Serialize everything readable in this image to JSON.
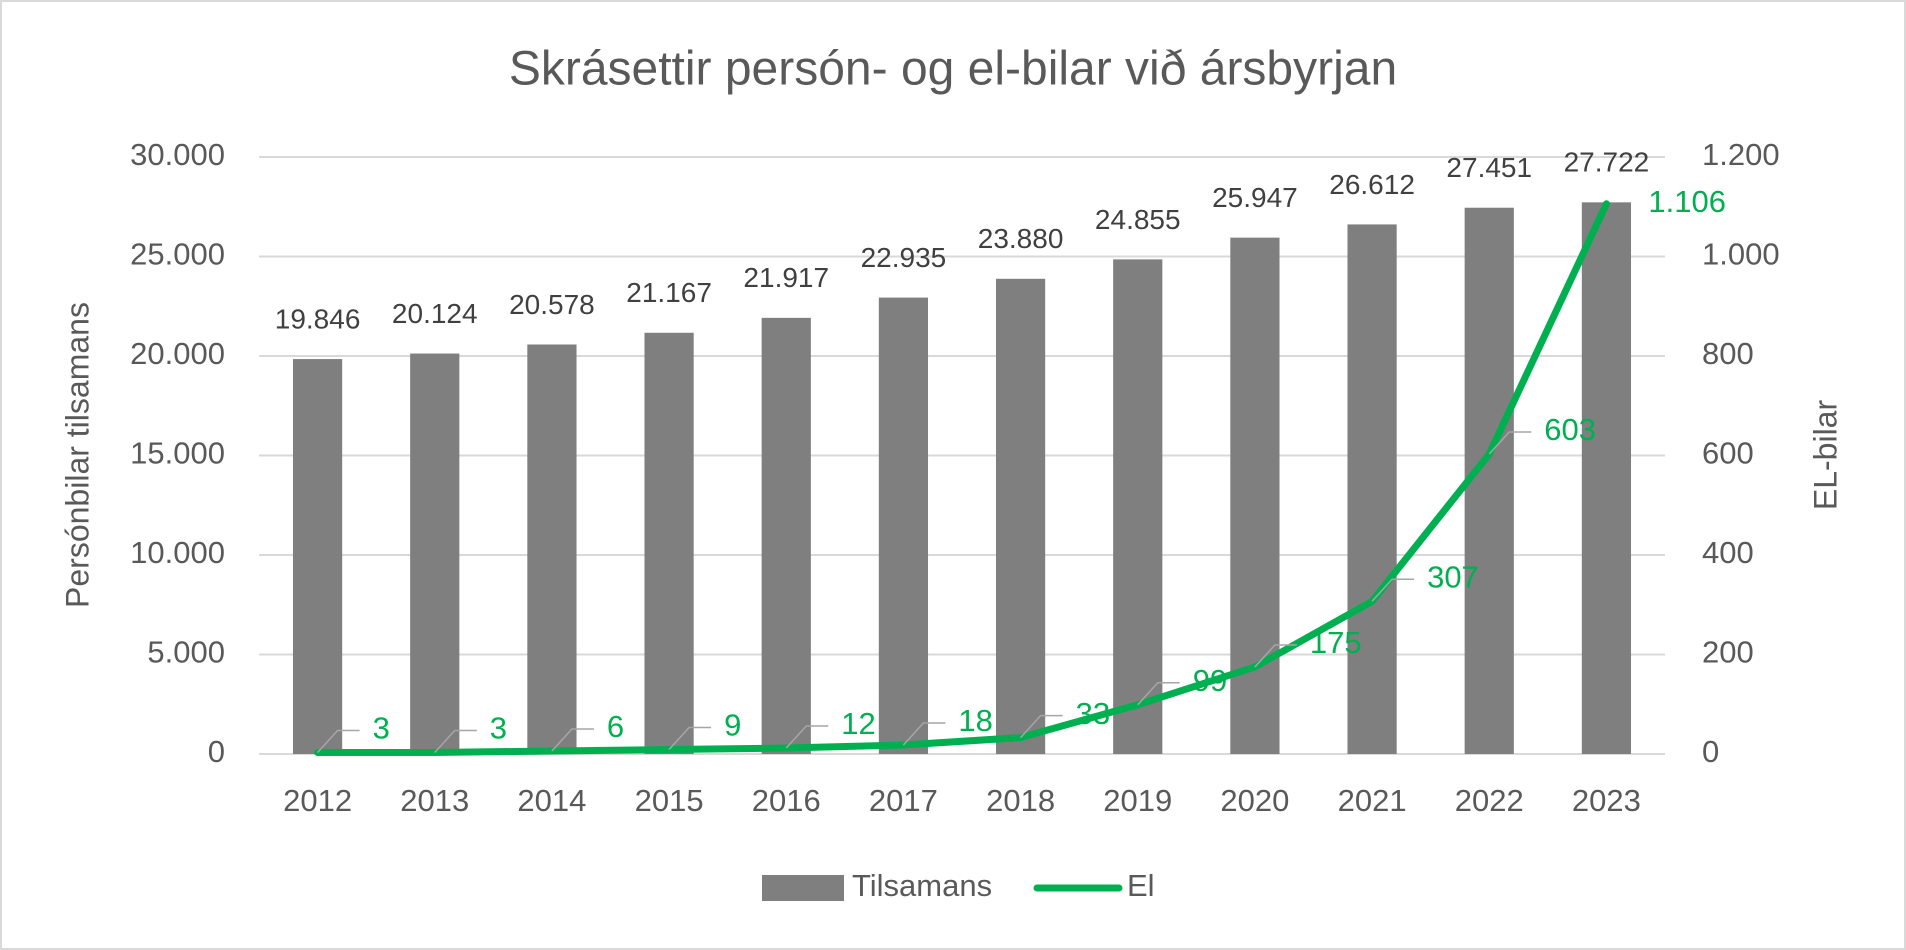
{
  "chart_data": {
    "type": "bar",
    "title": "Skrásettir persón- og el-bilar við ársbyrjan",
    "y_label": "Persónbilar tilsamans",
    "y2_label": "EL-bilar",
    "categories": [
      "2012",
      "2013",
      "2014",
      "2015",
      "2016",
      "2017",
      "2018",
      "2019",
      "2020",
      "2021",
      "2022",
      "2023"
    ],
    "series": [
      {
        "name": "Tilsamans",
        "type": "bar",
        "color": "#7f7f7f",
        "values": [
          19846,
          20124,
          20578,
          21167,
          21917,
          22935,
          23880,
          24855,
          25947,
          26612,
          27451,
          27722
        ],
        "value_labels": [
          "19.846",
          "20.124",
          "20.578",
          "21.167",
          "21.917",
          "22.935",
          "23.880",
          "24.855",
          "25.947",
          "26.612",
          "27.451",
          "27.722"
        ]
      },
      {
        "name": "El",
        "type": "line",
        "axis": "y2",
        "color": "#00b050",
        "values": [
          3,
          3,
          6,
          9,
          12,
          18,
          33,
          99,
          175,
          307,
          603,
          1106
        ],
        "value_labels": [
          "3",
          "3",
          "6",
          "9",
          "12",
          "18",
          "33",
          "99",
          "175",
          "307",
          "603",
          "1.106"
        ]
      }
    ],
    "ylim": [
      0,
      30000
    ],
    "yticks": [
      0,
      {
        "value": 5000,
        "label": "5.000"
      },
      {
        "value": 10000,
        "label": "10.000"
      },
      {
        "value": 15000,
        "label": "15.000"
      },
      {
        "value": 20000,
        "label": "20.000"
      },
      {
        "value": 25000,
        "label": "25.000"
      },
      {
        "value": 30000,
        "label": "30.000"
      }
    ],
    "y2lim": [
      0,
      1200
    ],
    "y2ticks": [
      0,
      200,
      400,
      600,
      800,
      {
        "value": 1000,
        "label": "1.000"
      },
      {
        "value": 1200,
        "label": "1.200"
      }
    ],
    "grid": true,
    "legend": "bottom"
  }
}
